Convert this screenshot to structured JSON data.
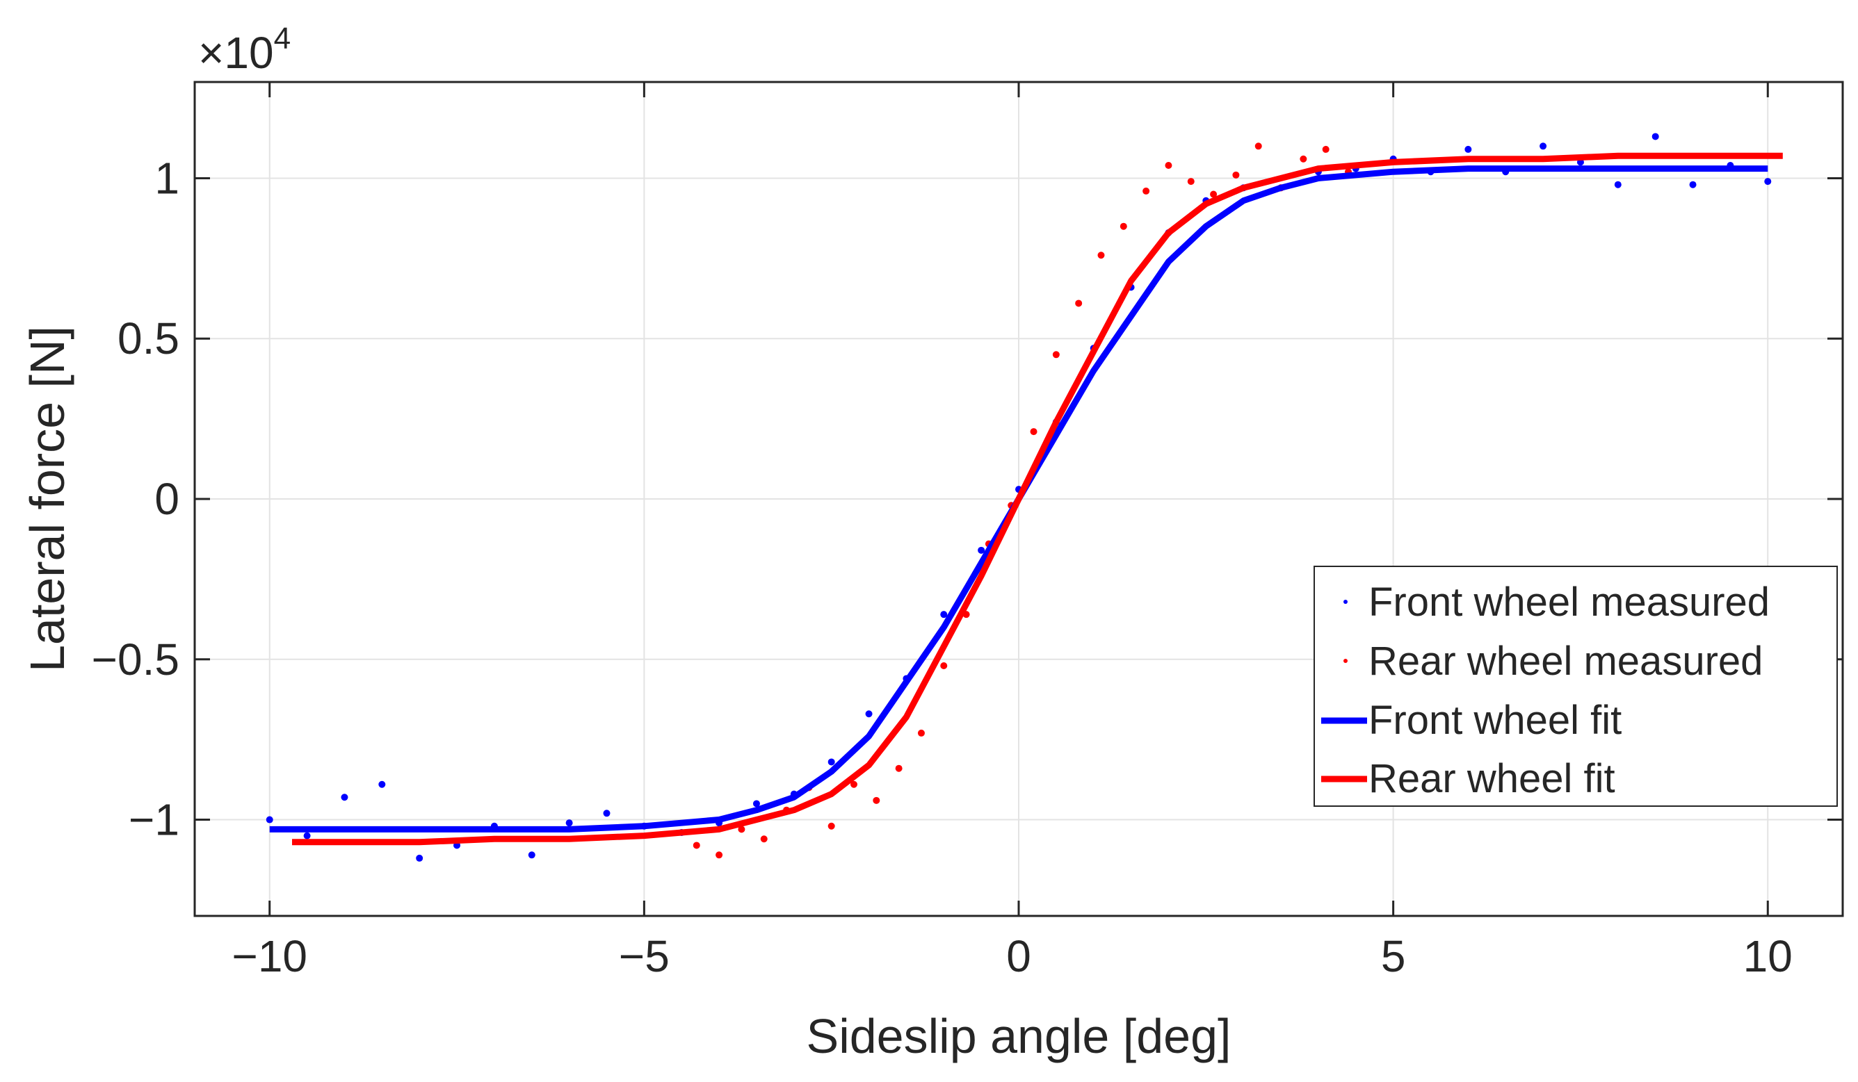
{
  "chart_data": {
    "type": "scatter",
    "title": "",
    "xlabel": "Sideslip angle [deg]",
    "ylabel": "Lateral force [N]",
    "exponent_label": "×10",
    "exponent_power": "4",
    "xlim": [
      -11,
      11
    ],
    "ylim": [
      -1.3,
      1.3
    ],
    "y_scale": 10000,
    "grid": true,
    "legend_position": "inside lower-right",
    "x_ticks": [
      {
        "value": -10,
        "label": "−10"
      },
      {
        "value": -5,
        "label": "−5"
      },
      {
        "value": 0,
        "label": "0"
      },
      {
        "value": 5,
        "label": "5"
      },
      {
        "value": 10,
        "label": "10"
      }
    ],
    "y_ticks": [
      {
        "value": 1,
        "label": "1"
      },
      {
        "value": 0.5,
        "label": "0.5"
      },
      {
        "value": 0,
        "label": "0"
      },
      {
        "value": -0.5,
        "label": "−0.5"
      },
      {
        "value": -1,
        "label": "−1"
      }
    ],
    "series": [
      {
        "name": "Front wheel measured",
        "style": "dots",
        "color": "#0000ff",
        "x": [
          -10.0,
          -9.5,
          -9.0,
          -8.5,
          -8.0,
          -7.5,
          -7.0,
          -6.5,
          -6.0,
          -5.5,
          -5.0,
          -4.5,
          -4.0,
          -3.5,
          -3.0,
          -2.5,
          -2.0,
          -1.5,
          -1.0,
          -0.5,
          0.0,
          0.5,
          1.0,
          1.5,
          2.0,
          2.5,
          3.0,
          3.5,
          4.0,
          4.5,
          5.0,
          5.5,
          6.0,
          6.5,
          7.0,
          7.5,
          8.0,
          8.5,
          9.0,
          9.5,
          10.0
        ],
        "y": [
          -1.0,
          -1.05,
          -0.93,
          -0.89,
          -1.12,
          -1.08,
          -1.02,
          -1.11,
          -1.01,
          -0.98,
          -1.02,
          -1.04,
          -1.01,
          -0.95,
          -0.92,
          -0.82,
          -0.67,
          -0.56,
          -0.36,
          -0.16,
          0.03,
          0.24,
          0.47,
          0.66,
          0.83,
          0.93,
          0.97,
          0.97,
          1.02,
          1.03,
          1.06,
          1.02,
          1.09,
          1.02,
          1.1,
          1.05,
          0.98,
          1.13,
          0.98,
          1.04,
          0.99
        ]
      },
      {
        "name": "Rear wheel measured",
        "style": "dots",
        "color": "#ff0000",
        "x": [
          -4.3,
          -4.0,
          -3.7,
          -3.4,
          -3.1,
          -2.8,
          -2.5,
          -2.2,
          -1.9,
          -1.6,
          -1.3,
          -1.0,
          -0.7,
          -0.4,
          -0.1,
          0.2,
          0.5,
          0.8,
          1.1,
          1.4,
          1.7,
          2.0,
          2.3,
          2.6,
          2.9,
          3.2,
          3.5,
          3.8,
          4.1,
          4.4
        ],
        "y": [
          -1.08,
          -1.11,
          -1.03,
          -1.06,
          -0.97,
          -0.9,
          -1.02,
          -0.89,
          -0.94,
          -0.84,
          -0.73,
          -0.52,
          -0.36,
          -0.14,
          -0.02,
          0.21,
          0.45,
          0.61,
          0.76,
          0.85,
          0.96,
          1.04,
          0.99,
          0.95,
          1.01,
          1.1,
          0.97,
          1.06,
          1.09,
          1.02
        ]
      },
      {
        "name": "Front wheel fit",
        "style": "line",
        "color": "#0000ff",
        "x": [
          -10.0,
          -9.0,
          -8.0,
          -7.0,
          -6.0,
          -5.0,
          -4.0,
          -3.5,
          -3.0,
          -2.5,
          -2.0,
          -1.5,
          -1.0,
          -0.5,
          0.0,
          0.5,
          1.0,
          1.5,
          2.0,
          2.5,
          3.0,
          3.5,
          4.0,
          5.0,
          6.0,
          7.0,
          8.0,
          9.0,
          10.0
        ],
        "y": [
          -1.03,
          -1.03,
          -1.03,
          -1.03,
          -1.03,
          -1.02,
          -1.0,
          -0.97,
          -0.93,
          -0.85,
          -0.74,
          -0.57,
          -0.4,
          -0.2,
          0.0,
          0.2,
          0.4,
          0.57,
          0.74,
          0.85,
          0.93,
          0.97,
          1.0,
          1.02,
          1.03,
          1.03,
          1.03,
          1.03,
          1.03
        ]
      },
      {
        "name": "Rear wheel fit",
        "style": "line",
        "color": "#ff0000",
        "x": [
          -9.7,
          -9.0,
          -8.0,
          -7.0,
          -6.0,
          -5.0,
          -4.0,
          -3.5,
          -3.0,
          -2.5,
          -2.0,
          -1.5,
          -1.0,
          -0.5,
          0.0,
          0.5,
          1.0,
          1.5,
          2.0,
          2.5,
          3.0,
          3.5,
          4.0,
          5.0,
          6.0,
          7.0,
          8.0,
          9.0,
          10.2
        ],
        "y": [
          -1.07,
          -1.07,
          -1.07,
          -1.06,
          -1.06,
          -1.05,
          -1.03,
          -1.0,
          -0.97,
          -0.92,
          -0.83,
          -0.68,
          -0.46,
          -0.24,
          0.0,
          0.24,
          0.46,
          0.68,
          0.83,
          0.92,
          0.97,
          1.0,
          1.03,
          1.05,
          1.06,
          1.06,
          1.07,
          1.07,
          1.07
        ]
      }
    ]
  }
}
